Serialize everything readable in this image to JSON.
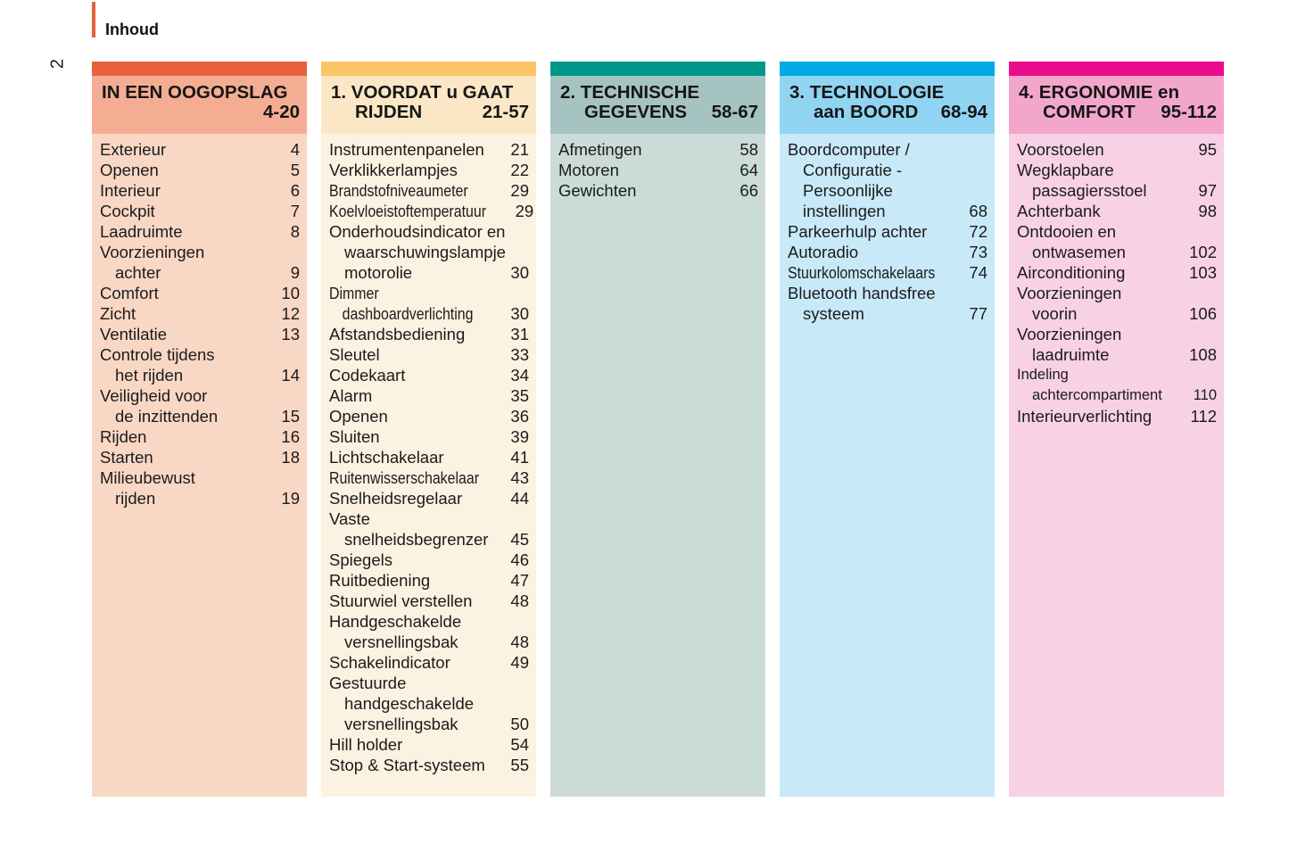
{
  "page": {
    "number": "2",
    "title": "Inhoud",
    "accent_color": "#E8613B"
  },
  "columns": [
    {
      "id": "overview",
      "colors": {
        "bar": "#E8603C",
        "header": "#F4AD93",
        "body": "#F9D7C5"
      },
      "header": {
        "line1": "IN EEN OOGOPSLAG",
        "line2": "",
        "range": "4-20"
      },
      "entries": [
        {
          "lines": [
            "Exterieur"
          ],
          "page": "4"
        },
        {
          "lines": [
            "Openen"
          ],
          "page": "5"
        },
        {
          "lines": [
            "Interieur"
          ],
          "page": "6"
        },
        {
          "lines": [
            "Cockpit"
          ],
          "page": "7"
        },
        {
          "lines": [
            "Laadruimte"
          ],
          "page": "8"
        },
        {
          "lines": [
            "Voorzieningen",
            "achter"
          ],
          "page": "9"
        },
        {
          "lines": [
            "Comfort"
          ],
          "page": "10"
        },
        {
          "lines": [
            "Zicht"
          ],
          "page": "12"
        },
        {
          "lines": [
            "Ventilatie"
          ],
          "page": "13"
        },
        {
          "lines": [
            "Controle tijdens",
            "het rijden"
          ],
          "page": "14"
        },
        {
          "lines": [
            "Veiligheid voor",
            "de inzittenden"
          ],
          "page": "15"
        },
        {
          "lines": [
            "Rijden"
          ],
          "page": "16"
        },
        {
          "lines": [
            "Starten"
          ],
          "page": "18"
        },
        {
          "lines": [
            "Milieubewust",
            "rijden"
          ],
          "page": "19"
        }
      ]
    },
    {
      "id": "before-driving",
      "colors": {
        "bar": "#FBC566",
        "header": "#FBE7C5",
        "body": "#FCF2E1"
      },
      "header": {
        "line1": "1. VOORDAT u GAAT",
        "line2": "RIJDEN",
        "range": "21-57"
      },
      "entries": [
        {
          "lines": [
            "Instrumentenpanelen"
          ],
          "page": "21"
        },
        {
          "lines": [
            "Verklikkerlampjes"
          ],
          "page": "22"
        },
        {
          "lines": [
            "Brandstofniveaumeter"
          ],
          "page": "29",
          "condensed": true
        },
        {
          "lines": [
            "Koelvloeistoftemperatuur"
          ],
          "page": "29",
          "condensed": true
        },
        {
          "lines": [
            "Onderhoudsindicator en",
            "waarschuwingslampje",
            "motorolie"
          ],
          "page": "30"
        },
        {
          "lines": [
            "Dimmer",
            "dashboardverlichting"
          ],
          "page": "30",
          "condensed": true
        },
        {
          "lines": [
            "Afstandsbediening"
          ],
          "page": "31"
        },
        {
          "lines": [
            "Sleutel"
          ],
          "page": "33"
        },
        {
          "lines": [
            "Codekaart"
          ],
          "page": "34"
        },
        {
          "lines": [
            "Alarm"
          ],
          "page": "35"
        },
        {
          "lines": [
            "Openen"
          ],
          "page": "36"
        },
        {
          "lines": [
            "Sluiten"
          ],
          "page": "39"
        },
        {
          "lines": [
            "Lichtschakelaar"
          ],
          "page": "41"
        },
        {
          "lines": [
            "Ruitenwisserschakelaar"
          ],
          "page": "43",
          "condensed": true
        },
        {
          "lines": [
            "Snelheidsregelaar"
          ],
          "page": "44"
        },
        {
          "lines": [
            "Vaste",
            "snelheidsbegrenzer"
          ],
          "page": "45"
        },
        {
          "lines": [
            "Spiegels"
          ],
          "page": "46"
        },
        {
          "lines": [
            "Ruitbediening"
          ],
          "page": "47"
        },
        {
          "lines": [
            "Stuurwiel verstellen"
          ],
          "page": "48"
        },
        {
          "lines": [
            "Handgeschakelde",
            "versnellingsbak"
          ],
          "page": "48"
        },
        {
          "lines": [
            "Schakelindicator"
          ],
          "page": "49"
        },
        {
          "lines": [
            "Gestuurde",
            "handgeschakelde",
            "versnellingsbak"
          ],
          "page": "50"
        },
        {
          "lines": [
            "Hill holder"
          ],
          "page": "54"
        },
        {
          "lines": [
            "Stop & Start-systeem"
          ],
          "page": "55"
        }
      ]
    },
    {
      "id": "technical-data",
      "colors": {
        "bar": "#00978B",
        "header": "#A5C3C0",
        "body": "#CADBD8"
      },
      "header": {
        "line1": "2. TECHNISCHE",
        "line2": "GEGEVENS",
        "range": "58-67"
      },
      "entries": [
        {
          "lines": [
            "Afmetingen"
          ],
          "page": "58"
        },
        {
          "lines": [
            "Motoren"
          ],
          "page": "64"
        },
        {
          "lines": [
            "Gewichten"
          ],
          "page": "66"
        }
      ]
    },
    {
      "id": "onboard-technology",
      "colors": {
        "bar": "#00A9E3",
        "header": "#90D4F2",
        "body": "#C8E9F8"
      },
      "header": {
        "line1": "3. TECHNOLOGIE",
        "line2": "aan BOORD",
        "range": "68-94"
      },
      "entries": [
        {
          "lines": [
            "Boordcomputer /",
            "Configuratie -",
            "Persoonlijke",
            "instellingen"
          ],
          "page": "68"
        },
        {
          "lines": [
            "Parkeerhulp achter"
          ],
          "page": "72"
        },
        {
          "lines": [
            "Autoradio"
          ],
          "page": "73"
        },
        {
          "lines": [
            "Stuurkolomschakelaars"
          ],
          "page": "74",
          "condensed": true
        },
        {
          "lines": [
            "Bluetooth handsfree",
            "systeem"
          ],
          "page": "77"
        }
      ]
    },
    {
      "id": "ergonomics-comfort",
      "colors": {
        "bar": "#EA0B8C",
        "header": "#F3A6CB",
        "body": "#F8D1E4"
      },
      "header": {
        "line1": "4. ERGONOMIE en",
        "line2": "COMFORT",
        "range": "95-112"
      },
      "entries": [
        {
          "lines": [
            "Voorstoelen"
          ],
          "page": "95"
        },
        {
          "lines": [
            "Wegklapbare",
            "passagiersstoel"
          ],
          "page": "97"
        },
        {
          "lines": [
            "Achterbank"
          ],
          "page": "98"
        },
        {
          "lines": [
            "Ontdooien en",
            "ontwasemen"
          ],
          "page": "102"
        },
        {
          "lines": [
            "Airconditioning"
          ],
          "page": "103"
        },
        {
          "lines": [
            "Voorzieningen",
            "voorin"
          ],
          "page": "106"
        },
        {
          "lines": [
            "Voorzieningen",
            "laadruimte"
          ],
          "page": "108"
        },
        {
          "lines": [
            "Indeling",
            "achtercompartiment"
          ],
          "page": "110",
          "small": true
        },
        {
          "lines": [
            "Interieurverlichting"
          ],
          "page": "112"
        }
      ]
    }
  ]
}
